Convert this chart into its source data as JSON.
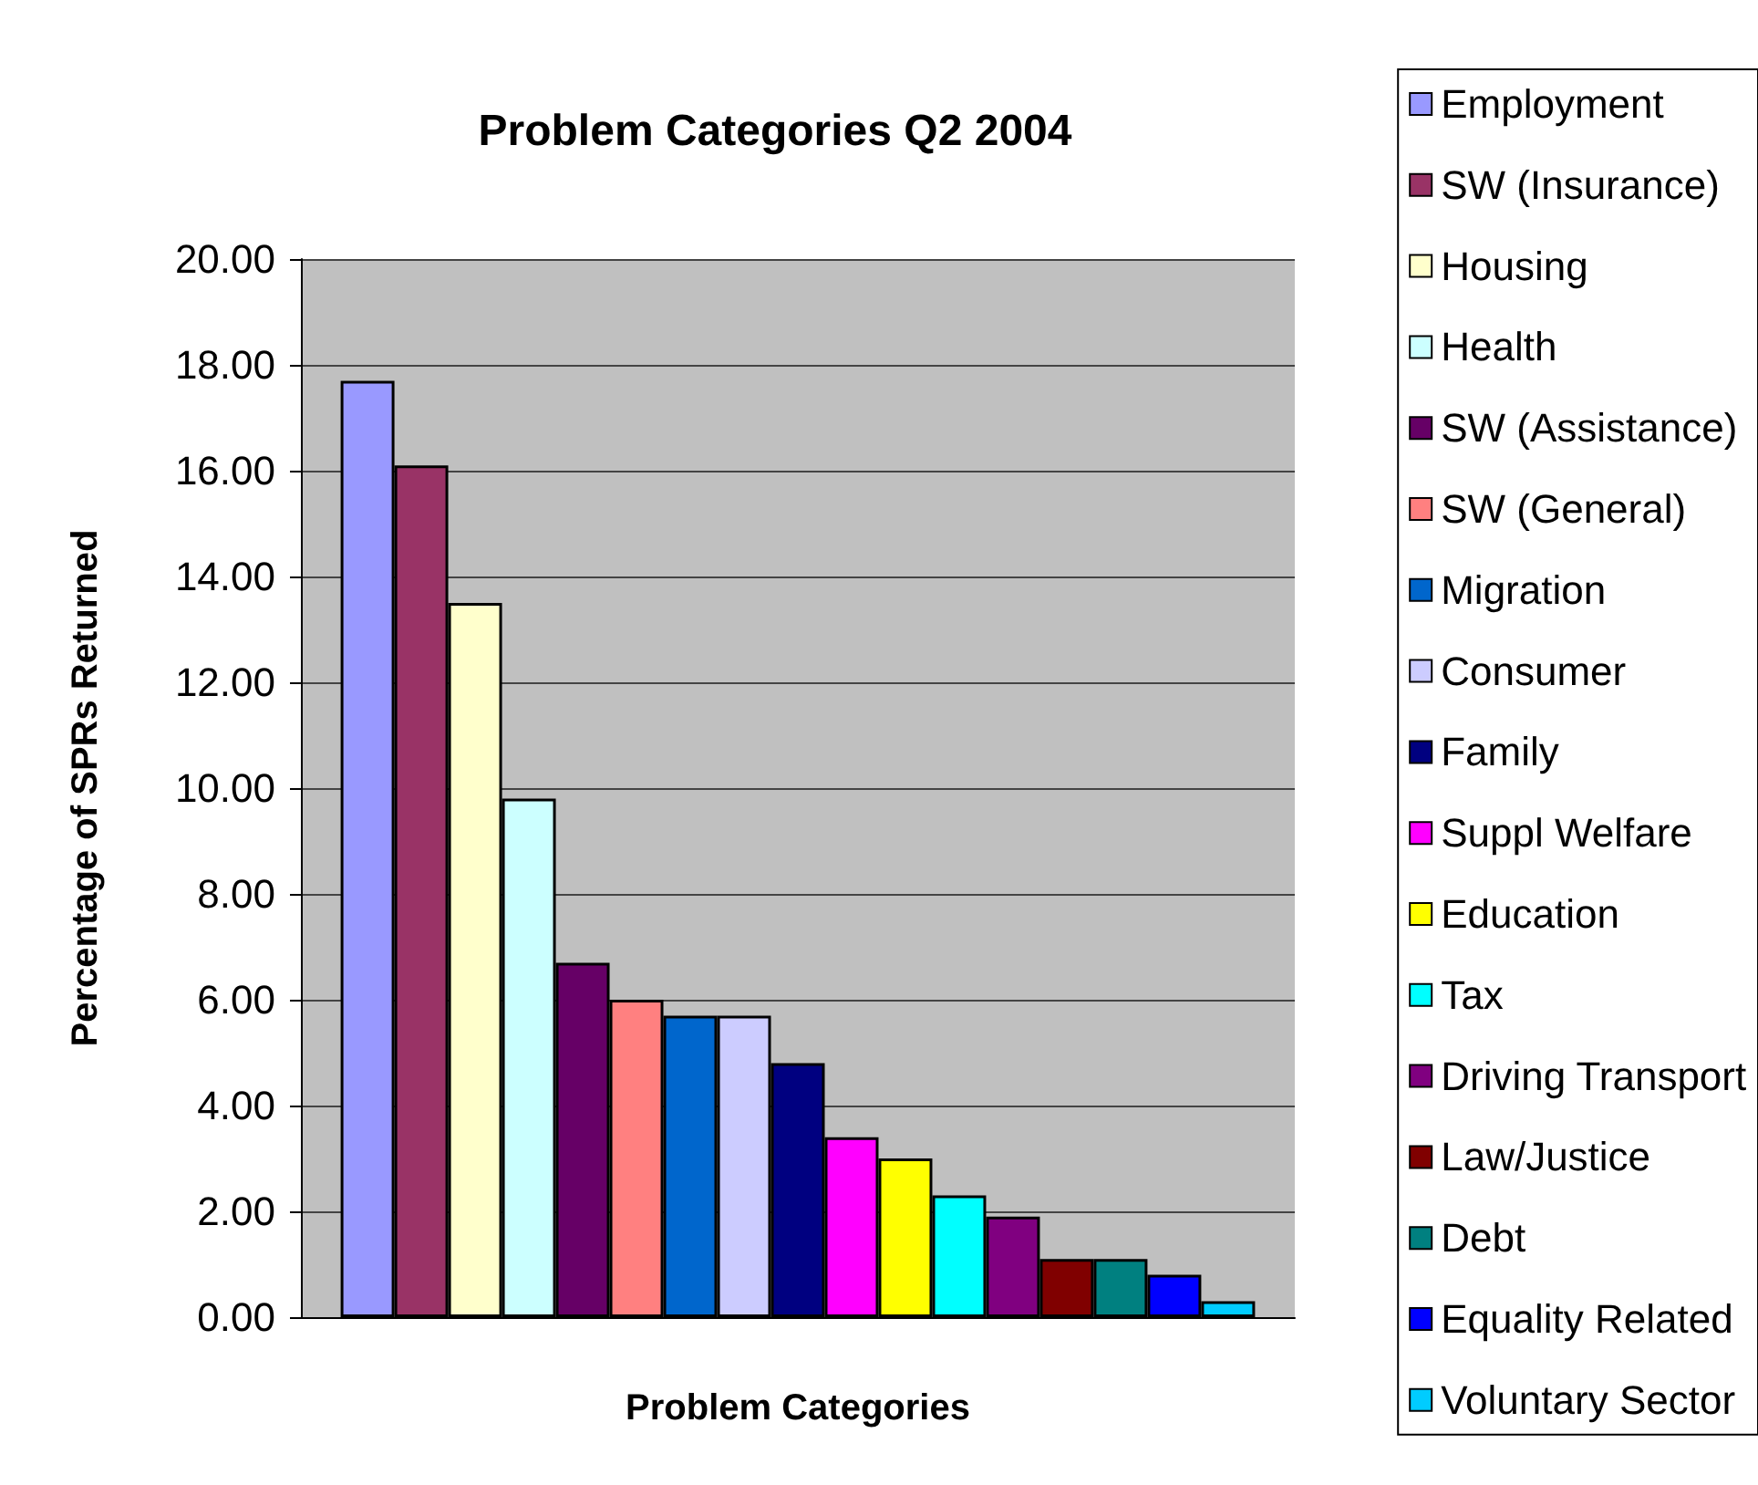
{
  "chart_data": {
    "type": "bar",
    "title": "Problem Categories Q2 2004",
    "xlabel": "Problem Categories",
    "ylabel": "Percentage of SPRs Returned",
    "categories": [
      null
    ],
    "series": [
      {
        "name": "Employment",
        "color": "#9999ff",
        "values": [
          17.7
        ]
      },
      {
        "name": "SW (Insurance)",
        "color": "#993366",
        "values": [
          16.1
        ]
      },
      {
        "name": "Housing",
        "color": "#ffffcc",
        "values": [
          13.5
        ]
      },
      {
        "name": "Health",
        "color": "#ccffff",
        "values": [
          9.8
        ]
      },
      {
        "name": "SW (Assistance)",
        "color": "#660066",
        "values": [
          6.7
        ]
      },
      {
        "name": "SW (General)",
        "color": "#ff8080",
        "values": [
          6.0
        ]
      },
      {
        "name": "Migration",
        "color": "#0066cc",
        "values": [
          5.7
        ]
      },
      {
        "name": "Consumer",
        "color": "#ccccff",
        "values": [
          5.7
        ]
      },
      {
        "name": "Family",
        "color": "#000080",
        "values": [
          4.8
        ]
      },
      {
        "name": "Suppl Welfare",
        "color": "#ff00ff",
        "values": [
          3.4
        ]
      },
      {
        "name": "Education",
        "color": "#ffff00",
        "values": [
          3.0
        ]
      },
      {
        "name": "Tax",
        "color": "#00ffff",
        "values": [
          2.3
        ]
      },
      {
        "name": "Driving Transport",
        "color": "#800080",
        "values": [
          1.9
        ]
      },
      {
        "name": "Law/Justice",
        "color": "#800000",
        "values": [
          1.1
        ]
      },
      {
        "name": "Debt",
        "color": "#008080",
        "values": [
          1.1
        ]
      },
      {
        "name": "Equality Related",
        "color": "#0000ff",
        "values": [
          0.8
        ]
      },
      {
        "name": "Voluntary Sector",
        "color": "#00ccff",
        "values": [
          0.3
        ]
      }
    ],
    "ylim": [
      0,
      20
    ],
    "yticks": [
      {
        "value": 0,
        "label": "0.00"
      },
      {
        "value": 2,
        "label": "2.00"
      },
      {
        "value": 4,
        "label": "4.00"
      },
      {
        "value": 6,
        "label": "6.00"
      },
      {
        "value": 8,
        "label": "8.00"
      },
      {
        "value": 10,
        "label": "10.00"
      },
      {
        "value": 12,
        "label": "12.00"
      },
      {
        "value": 14,
        "label": "14.00"
      },
      {
        "value": 16,
        "label": "16.00"
      },
      {
        "value": 18,
        "label": "18.00"
      },
      {
        "value": 20,
        "label": "20.00"
      }
    ],
    "grid": "y",
    "legend": "right"
  }
}
